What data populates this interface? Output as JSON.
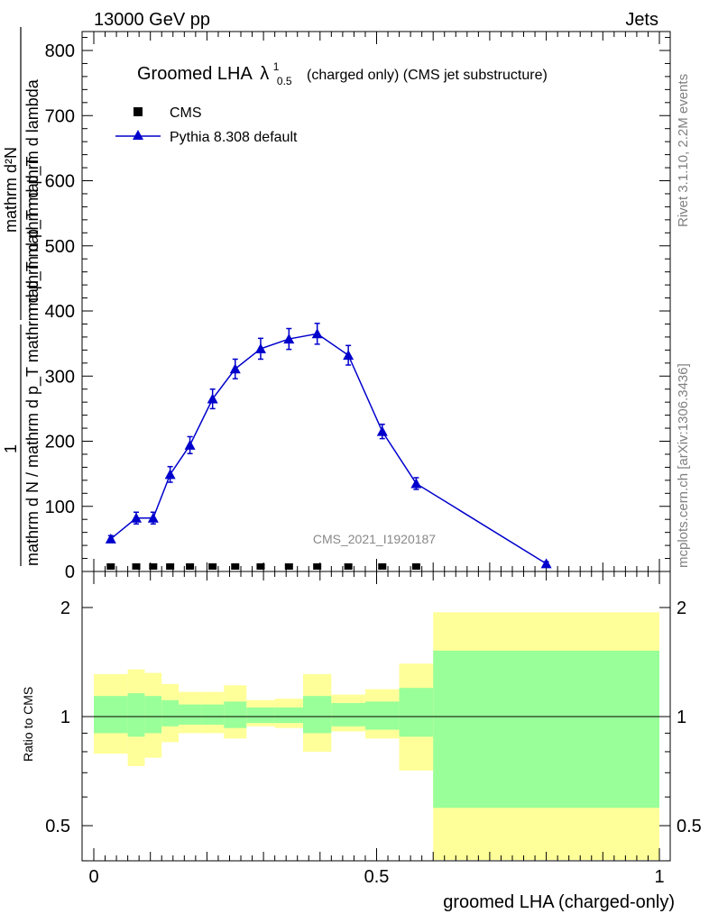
{
  "header": {
    "left": "13000 GeV pp",
    "right": "Jets"
  },
  "side_text": {
    "rivet": "Rivet 3.1.10,  2.2M events",
    "mcplots": "mcplots.cern.ch [arXiv:1306.3436]"
  },
  "plot_title": {
    "main": "Groomed LHA",
    "lambda": "λ",
    "sup": "1",
    "sub": "0.5",
    "rest": "(charged only) (CMS jet substructure)"
  },
  "watermark": "CMS_2021_I1920187",
  "ylabel": {
    "top_num": "1",
    "top_den": "mathrm d N / mathrm d p_T mathrm d p_T mathrm d p_T",
    "num": "mathrm d²N",
    "den": "mathrm d p_T mathrm d lambda",
    "full": "1 / mathrm d N / mathrm d p_T mathrm d p_T mathrm d²N / mathrm d p_T mathrm d lambda",
    "ratio": "Ratio to CMS"
  },
  "xlabel": "groomed LHA (charged-only)",
  "legend": [
    {
      "name": "CMS",
      "marker": "square",
      "color": "#000000"
    },
    {
      "name": "Pythia 8.308 default",
      "marker": "triangle",
      "color": "#0000cc"
    }
  ],
  "chart_data": [
    {
      "type": "line",
      "panel": "main",
      "xlim": [
        -0.02,
        1.0
      ],
      "ylim": [
        0,
        830
      ],
      "yticks": [
        0,
        100,
        200,
        300,
        400,
        500,
        600,
        700,
        800
      ],
      "series": [
        {
          "name": "CMS",
          "x": [
            0.03,
            0.075,
            0.105,
            0.135,
            0.17,
            0.21,
            0.25,
            0.295,
            0.345,
            0.395,
            0.45,
            0.51,
            0.57
          ],
          "y": [
            2,
            2,
            2,
            2,
            2,
            2,
            2,
            2,
            2,
            2,
            2,
            2,
            2
          ]
        },
        {
          "name": "Pythia 8.308 default",
          "x": [
            0.03,
            0.075,
            0.105,
            0.135,
            0.17,
            0.21,
            0.25,
            0.295,
            0.345,
            0.395,
            0.45,
            0.51,
            0.57,
            0.8
          ],
          "y": [
            50,
            82,
            82,
            149,
            194,
            265,
            311,
            342,
            357,
            365,
            332,
            215,
            135,
            12
          ],
          "yerr": [
            5,
            9,
            9,
            12,
            13,
            15,
            15,
            16,
            16,
            16,
            15,
            11,
            9,
            3
          ]
        }
      ]
    },
    {
      "type": "area",
      "panel": "ratio",
      "xlim": [
        -0.02,
        1.0
      ],
      "ylim": [
        0.35,
        2.3
      ],
      "yticks": [
        0.5,
        1,
        2
      ],
      "reference": 1,
      "bins": [
        {
          "x0": 0.0,
          "x1": 0.06,
          "g_lo": 0.9,
          "g_hi": 1.14,
          "y_lo": 0.79,
          "y_hi": 1.31
        },
        {
          "x0": 0.06,
          "x1": 0.09,
          "g_lo": 0.88,
          "g_hi": 1.16,
          "y_lo": 0.73,
          "y_hi": 1.35
        },
        {
          "x0": 0.09,
          "x1": 0.12,
          "g_lo": 0.9,
          "g_hi": 1.14,
          "y_lo": 0.77,
          "y_hi": 1.32
        },
        {
          "x0": 0.12,
          "x1": 0.15,
          "g_lo": 0.94,
          "g_hi": 1.11,
          "y_lo": 0.85,
          "y_hi": 1.23
        },
        {
          "x0": 0.15,
          "x1": 0.19,
          "g_lo": 0.95,
          "g_hi": 1.08,
          "y_lo": 0.9,
          "y_hi": 1.17
        },
        {
          "x0": 0.19,
          "x1": 0.23,
          "g_lo": 0.95,
          "g_hi": 1.08,
          "y_lo": 0.9,
          "y_hi": 1.17
        },
        {
          "x0": 0.23,
          "x1": 0.27,
          "g_lo": 0.93,
          "g_hi": 1.1,
          "y_lo": 0.87,
          "y_hi": 1.22
        },
        {
          "x0": 0.27,
          "x1": 0.32,
          "g_lo": 0.96,
          "g_hi": 1.06,
          "y_lo": 0.94,
          "y_hi": 1.11
        },
        {
          "x0": 0.32,
          "x1": 0.37,
          "g_lo": 0.96,
          "g_hi": 1.06,
          "y_lo": 0.93,
          "y_hi": 1.12
        },
        {
          "x0": 0.37,
          "x1": 0.42,
          "g_lo": 0.9,
          "g_hi": 1.14,
          "y_lo": 0.8,
          "y_hi": 1.31
        },
        {
          "x0": 0.42,
          "x1": 0.48,
          "g_lo": 0.94,
          "g_hi": 1.09,
          "y_lo": 0.91,
          "y_hi": 1.15
        },
        {
          "x0": 0.48,
          "x1": 0.54,
          "g_lo": 0.92,
          "g_hi": 1.1,
          "y_lo": 0.87,
          "y_hi": 1.19
        },
        {
          "x0": 0.54,
          "x1": 0.6,
          "g_lo": 0.88,
          "g_hi": 1.2,
          "y_lo": 0.71,
          "y_hi": 1.4
        },
        {
          "x0": 0.6,
          "x1": 1.0,
          "g_lo": 0.56,
          "g_hi": 1.52,
          "y_lo": 0.35,
          "y_hi": 1.94
        }
      ],
      "colors": {
        "green": "#99ff99",
        "yellow": "#ffff99"
      }
    }
  ],
  "xticks": [
    {
      "value": 0,
      "label": "0"
    },
    {
      "value": 0.5,
      "label": "0.5"
    },
    {
      "value": 1,
      "label": "1"
    }
  ]
}
